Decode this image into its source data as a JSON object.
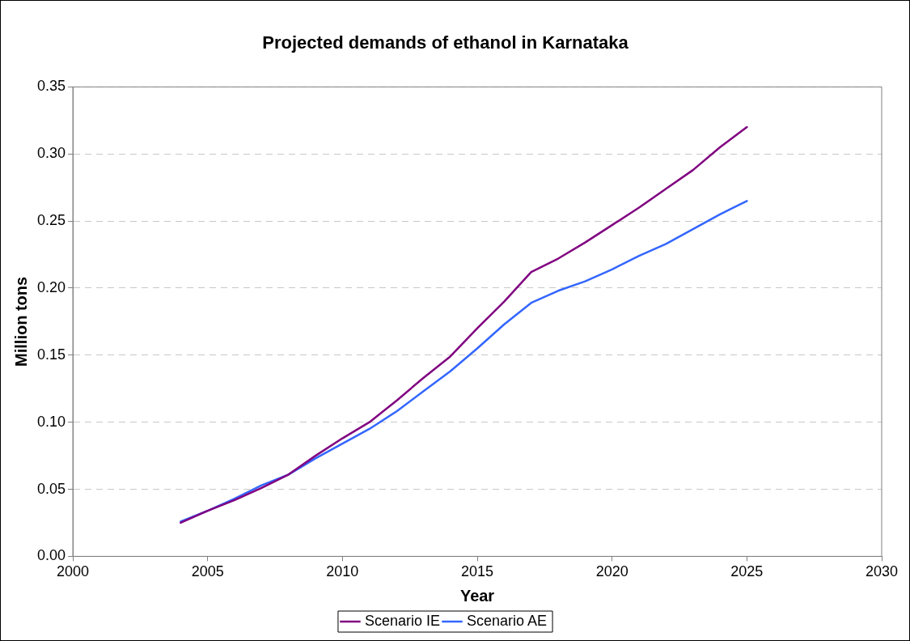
{
  "chart_data": {
    "type": "line",
    "title": "Projected demands of ethanol in Karnataka",
    "xlabel": "Year",
    "ylabel": "Million tons",
    "x": [
      2004,
      2005,
      2006,
      2007,
      2008,
      2009,
      2010,
      2011,
      2012,
      2013,
      2014,
      2015,
      2016,
      2017,
      2018,
      2019,
      2020,
      2021,
      2022,
      2023,
      2024,
      2025
    ],
    "series": [
      {
        "name": "Scenario IE",
        "color": "#800080",
        "values": [
          0.025,
          0.034,
          0.042,
          0.051,
          0.061,
          0.075,
          0.088,
          0.1,
          0.116,
          0.133,
          0.149,
          0.17,
          0.19,
          0.212,
          0.222,
          0.234,
          0.247,
          0.26,
          0.274,
          0.288,
          0.305,
          0.32
        ]
      },
      {
        "name": "Scenario AE",
        "color": "#3366ff",
        "values": [
          0.026,
          0.034,
          0.043,
          0.053,
          0.061,
          0.073,
          0.084,
          0.095,
          0.108,
          0.123,
          0.138,
          0.155,
          0.173,
          0.189,
          0.198,
          0.205,
          0.214,
          0.224,
          0.233,
          0.244,
          0.255,
          0.265
        ]
      }
    ],
    "xlim": [
      2000,
      2030
    ],
    "xticks": [
      2000,
      2005,
      2010,
      2015,
      2020,
      2025,
      2030
    ],
    "ylim": [
      0,
      0.35
    ],
    "yticks": [
      {
        "value": 0,
        "label": "0.00"
      },
      {
        "value": 0.05,
        "label": "0.05"
      },
      {
        "value": 0.1,
        "label": "0.10"
      },
      {
        "value": 0.15,
        "label": "0.15"
      },
      {
        "value": 0.2,
        "label": "0.20"
      },
      {
        "value": 0.25,
        "label": "0.25"
      },
      {
        "value": 0.3,
        "label": "0.30"
      },
      {
        "value": 0.35,
        "label": "0.35"
      }
    ],
    "grid": "y",
    "legend": "bottom",
    "marker": "none",
    "line_style": "solid"
  }
}
